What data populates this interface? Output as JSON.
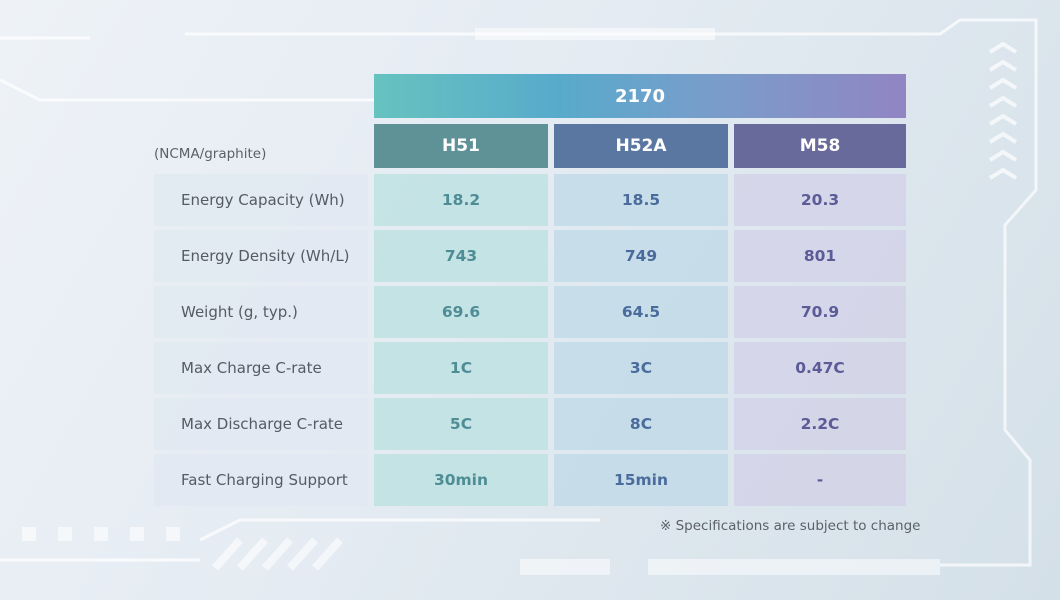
{
  "table": {
    "group_header": "2170",
    "corner_label": "(NCMA/graphite)",
    "columns": [
      "H51",
      "H52A",
      "M58"
    ],
    "rows": [
      {
        "label": "Energy Capacity (Wh)",
        "values": [
          "18.2",
          "18.5",
          "20.3"
        ]
      },
      {
        "label": "Energy Density (Wh/L)",
        "values": [
          "743",
          "749",
          "801"
        ]
      },
      {
        "label": "Weight (g, typ.)",
        "values": [
          "69.6",
          "64.5",
          "70.9"
        ]
      },
      {
        "label": "Max Charge C-rate",
        "values": [
          "1C",
          "3C",
          "0.47C"
        ]
      },
      {
        "label": "Max Discharge C-rate",
        "values": [
          "5C",
          "8C",
          "2.2C"
        ]
      },
      {
        "label": "Fast Charging Support",
        "values": [
          "30min",
          "15min",
          "-"
        ]
      }
    ],
    "footnote": "※ Specifications are subject to change"
  }
}
